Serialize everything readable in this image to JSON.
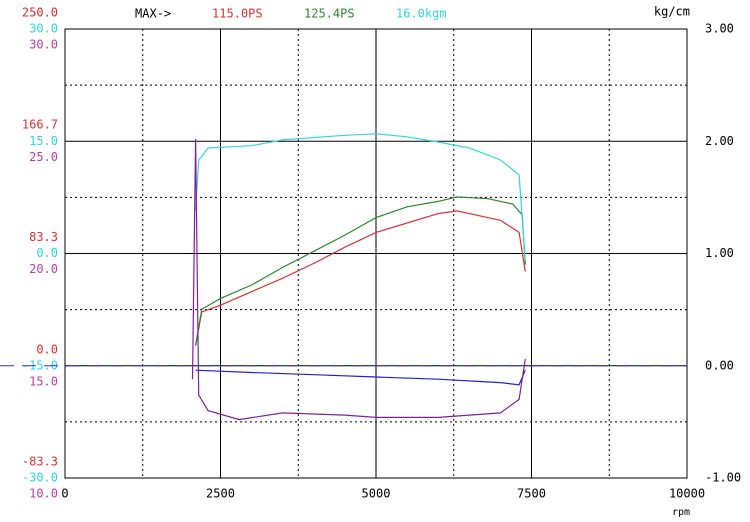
{
  "chart_data": {
    "type": "line",
    "header": "MAX->",
    "x_label": "rpm",
    "xlim": [
      0,
      10000
    ],
    "xticks": [
      0,
      2500,
      5000,
      7500,
      10000
    ],
    "left_axes": [
      {
        "color": "#e03030",
        "lim": [
          -83.3,
          250
        ],
        "ticks": [
          {
            "value": -83.3,
            "label": "-83.3"
          },
          {
            "value": 0,
            "label": "0.0"
          },
          {
            "value": 83.3,
            "label": "83.3"
          },
          {
            "value": 166.7,
            "label": "166.7"
          },
          {
            "value": 250,
            "label": "250.0"
          }
        ]
      },
      {
        "color": "#30d8e0",
        "lim": [
          -30,
          30
        ],
        "ticks": [
          {
            "value": -30,
            "label": "-30.0"
          },
          {
            "value": -15,
            "label": "-15.0"
          },
          {
            "value": 0,
            "label": "0.0"
          },
          {
            "value": 15,
            "label": "15.0"
          },
          {
            "value": 30,
            "label": "30.0"
          }
        ]
      },
      {
        "color": "#c040a0",
        "lim": [
          10,
          30
        ],
        "ticks": [
          {
            "value": 10,
            "label": "10.0"
          },
          {
            "value": 15,
            "label": "15.0"
          },
          {
            "value": 20,
            "label": "20.0"
          },
          {
            "value": 25,
            "label": "25.0"
          },
          {
            "value": 30,
            "label": "30.0"
          }
        ]
      }
    ],
    "right_axis": {
      "label": "kg/cm",
      "lim": [
        -1,
        3
      ],
      "ticks": [
        {
          "value": -1,
          "label": "-1.00"
        },
        {
          "value": 0,
          "label": "0.00"
        },
        {
          "value": 1,
          "label": "1.00"
        },
        {
          "value": 2,
          "label": "2.00"
        },
        {
          "value": 3,
          "label": "3.00"
        }
      ]
    },
    "reference_line": {
      "axis": "right",
      "value": 0,
      "color": "#3030c0"
    },
    "series": [
      {
        "color": "#e03030",
        "axis": 0,
        "max_label": "115.0PS",
        "x": [
          2100,
          2200,
          2500,
          3000,
          3500,
          4000,
          4500,
          5000,
          5500,
          6000,
          6300,
          6500,
          7000,
          7300,
          7400
        ],
        "values": [
          15,
          40,
          45,
          55,
          65,
          76,
          88,
          99,
          106,
          113,
          115,
          113,
          108,
          99,
          70
        ]
      },
      {
        "color": "#2a8a2a",
        "axis": 0,
        "max_label": "125.4PS",
        "x": [
          2100,
          2200,
          2500,
          3000,
          3500,
          4000,
          4500,
          5000,
          5500,
          6000,
          6300,
          6800,
          7200,
          7350,
          7400
        ],
        "values": [
          15,
          42,
          50,
          60,
          73,
          85,
          97,
          110,
          118,
          122,
          125.4,
          124,
          120,
          112,
          75
        ]
      },
      {
        "color": "#30d8e0",
        "axis": 1,
        "max_label": "16.0kgm",
        "x": [
          2100,
          2150,
          2300,
          3000,
          3500,
          4500,
          5000,
          5500,
          6000,
          6500,
          7000,
          7300,
          7400
        ],
        "values": [
          5.8,
          12.5,
          14.1,
          14.4,
          15.2,
          15.8,
          16.0,
          15.6,
          14.9,
          14.1,
          12.5,
          10.5,
          -0.9
        ]
      },
      {
        "color": "#2020d0",
        "axis": "right",
        "x": [
          2100,
          3000,
          4000,
          5000,
          6000,
          7000,
          7300,
          7400
        ],
        "values": [
          -0.04,
          -0.06,
          -0.08,
          -0.1,
          -0.12,
          -0.15,
          -0.17,
          -0.04
        ]
      },
      {
        "color": "#8020a0",
        "axis": 2,
        "x": [
          2050,
          2100,
          2150,
          2300,
          2800,
          3500,
          4500,
          5000,
          6000,
          7000,
          7300,
          7400
        ],
        "values": [
          14.4,
          25.1,
          13.7,
          13.0,
          12.6,
          12.9,
          12.8,
          12.7,
          12.7,
          12.9,
          13.5,
          15.3
        ]
      }
    ]
  }
}
